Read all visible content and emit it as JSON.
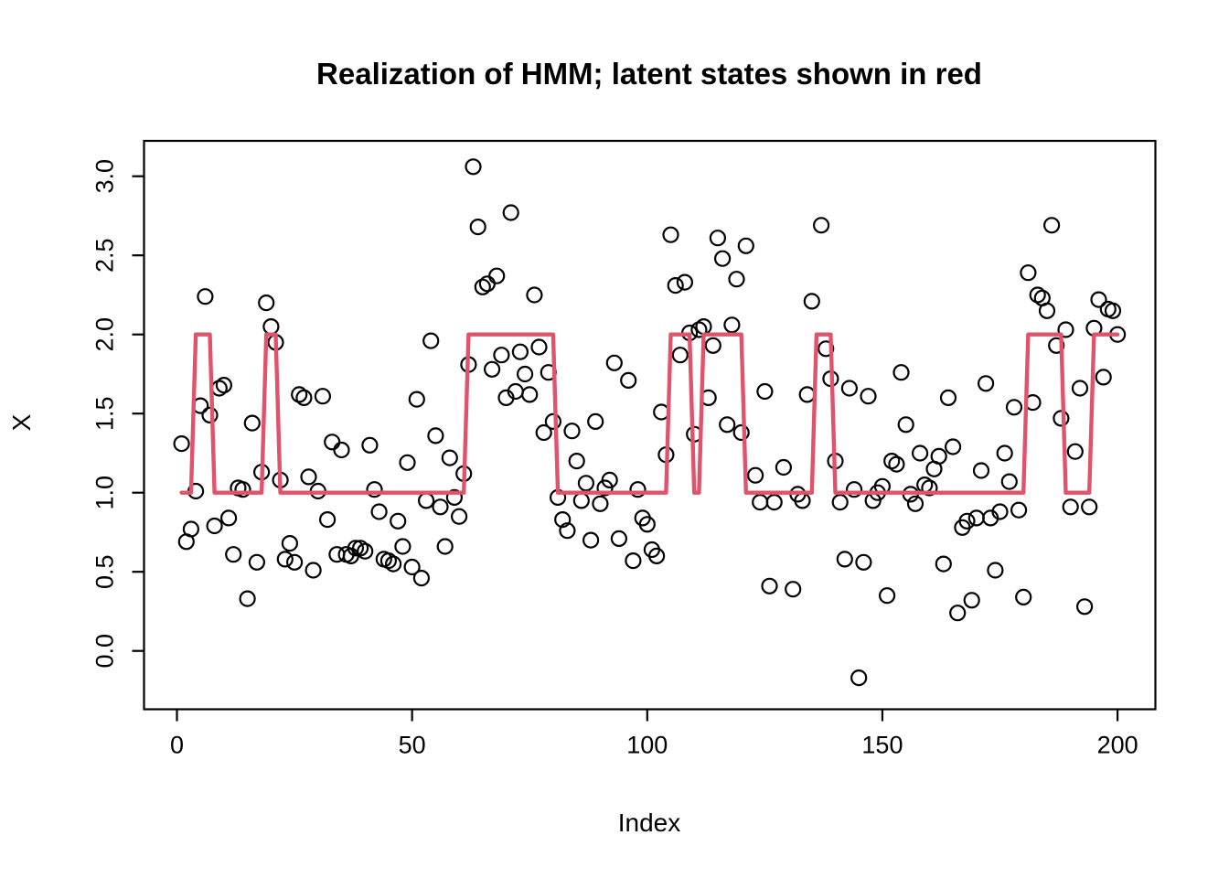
{
  "page": {
    "background": "#ffffff",
    "foreground": "#000000"
  },
  "chart_data": {
    "type": "scatter",
    "title": "Realization of HMM; latent states shown in red",
    "xlabel": "Index",
    "ylabel": "X",
    "x_tick_labels": [
      "0",
      "50",
      "100",
      "150",
      "200"
    ],
    "x_tick_values": [
      0,
      50,
      100,
      150,
      200
    ],
    "y_tick_labels": [
      "0.0",
      "0.5",
      "1.0",
      "1.5",
      "2.0",
      "2.5",
      "3.0"
    ],
    "y_tick_values": [
      0.0,
      0.5,
      1.0,
      1.5,
      2.0,
      2.5,
      3.0
    ],
    "xlim": [
      -7,
      208
    ],
    "ylim": [
      -0.37,
      3.22
    ],
    "grid": false,
    "legend_position": "none",
    "marker": "open-circle",
    "point_color": "#000000",
    "line_color": "#DF536B",
    "series": [
      {
        "name": "observations",
        "type": "scatter",
        "points": [
          [
            1,
            1.31
          ],
          [
            2,
            0.69
          ],
          [
            3,
            0.77
          ],
          [
            4,
            1.01
          ],
          [
            5,
            1.55
          ],
          [
            6,
            2.24
          ],
          [
            7,
            1.49
          ],
          [
            8,
            0.79
          ],
          [
            9,
            1.66
          ],
          [
            10,
            1.68
          ],
          [
            11,
            0.84
          ],
          [
            12,
            0.61
          ],
          [
            13,
            1.03
          ],
          [
            14,
            1.02
          ],
          [
            15,
            0.33
          ],
          [
            16,
            1.44
          ],
          [
            17,
            0.56
          ],
          [
            18,
            1.13
          ],
          [
            19,
            2.2
          ],
          [
            20,
            2.05
          ],
          [
            21,
            1.95
          ],
          [
            22,
            1.08
          ],
          [
            23,
            0.58
          ],
          [
            24,
            0.68
          ],
          [
            25,
            0.56
          ],
          [
            26,
            1.62
          ],
          [
            27,
            1.6
          ],
          [
            28,
            1.1
          ],
          [
            29,
            0.51
          ],
          [
            30,
            1.01
          ],
          [
            31,
            1.61
          ],
          [
            32,
            0.83
          ],
          [
            33,
            1.32
          ],
          [
            34,
            0.61
          ],
          [
            35,
            1.27
          ],
          [
            36,
            0.61
          ],
          [
            37,
            0.6
          ],
          [
            38,
            0.65
          ],
          [
            39,
            0.65
          ],
          [
            40,
            0.63
          ],
          [
            41,
            1.3
          ],
          [
            42,
            1.02
          ],
          [
            43,
            0.88
          ],
          [
            44,
            0.58
          ],
          [
            45,
            0.57
          ],
          [
            46,
            0.55
          ],
          [
            47,
            0.82
          ],
          [
            48,
            0.66
          ],
          [
            49,
            1.19
          ],
          [
            50,
            0.53
          ],
          [
            51,
            1.59
          ],
          [
            52,
            0.46
          ],
          [
            53,
            0.95
          ],
          [
            54,
            1.96
          ],
          [
            55,
            1.36
          ],
          [
            56,
            0.91
          ],
          [
            57,
            0.66
          ],
          [
            58,
            1.22
          ],
          [
            59,
            0.97
          ],
          [
            60,
            0.85
          ],
          [
            61,
            1.12
          ],
          [
            62,
            1.81
          ],
          [
            63,
            3.06
          ],
          [
            64,
            2.68
          ],
          [
            65,
            2.3
          ],
          [
            66,
            2.32
          ],
          [
            67,
            1.78
          ],
          [
            68,
            2.37
          ],
          [
            69,
            1.87
          ],
          [
            70,
            1.6
          ],
          [
            71,
            2.77
          ],
          [
            72,
            1.64
          ],
          [
            73,
            1.89
          ],
          [
            74,
            1.75
          ],
          [
            75,
            1.62
          ],
          [
            76,
            2.25
          ],
          [
            77,
            1.92
          ],
          [
            78,
            1.38
          ],
          [
            79,
            1.76
          ],
          [
            80,
            1.45
          ],
          [
            81,
            0.97
          ],
          [
            82,
            0.83
          ],
          [
            83,
            0.76
          ],
          [
            84,
            1.39
          ],
          [
            85,
            1.2
          ],
          [
            86,
            0.95
          ],
          [
            87,
            1.06
          ],
          [
            88,
            0.7
          ],
          [
            89,
            1.45
          ],
          [
            90,
            0.93
          ],
          [
            91,
            1.03
          ],
          [
            92,
            1.08
          ],
          [
            93,
            1.82
          ],
          [
            94,
            0.71
          ],
          [
            96,
            1.71
          ],
          [
            97,
            0.57
          ],
          [
            98,
            1.02
          ],
          [
            99,
            0.84
          ],
          [
            100,
            0.8
          ],
          [
            101,
            0.64
          ],
          [
            102,
            0.6
          ],
          [
            103,
            1.51
          ],
          [
            104,
            1.24
          ],
          [
            105,
            2.63
          ],
          [
            106,
            2.31
          ],
          [
            107,
            1.87
          ],
          [
            108,
            2.33
          ],
          [
            109,
            2.01
          ],
          [
            110,
            1.37
          ],
          [
            111,
            2.03
          ],
          [
            112,
            2.05
          ],
          [
            113,
            1.6
          ],
          [
            114,
            1.93
          ],
          [
            115,
            2.61
          ],
          [
            116,
            2.48
          ],
          [
            117,
            1.43
          ],
          [
            118,
            2.06
          ],
          [
            119,
            2.35
          ],
          [
            120,
            1.38
          ],
          [
            121,
            2.56
          ],
          [
            123,
            1.11
          ],
          [
            124,
            0.94
          ],
          [
            125,
            1.64
          ],
          [
            126,
            0.41
          ],
          [
            127,
            0.94
          ],
          [
            129,
            1.16
          ],
          [
            131,
            0.39
          ],
          [
            132,
            0.99
          ],
          [
            133,
            0.95
          ],
          [
            134,
            1.62
          ],
          [
            135,
            2.21
          ],
          [
            137,
            2.69
          ],
          [
            138,
            1.91
          ],
          [
            139,
            1.72
          ],
          [
            140,
            1.2
          ],
          [
            141,
            0.94
          ],
          [
            142,
            0.58
          ],
          [
            143,
            1.66
          ],
          [
            144,
            1.02
          ],
          [
            145,
            -0.17
          ],
          [
            146,
            0.56
          ],
          [
            147,
            1.61
          ],
          [
            148,
            0.95
          ],
          [
            149,
            1.0
          ],
          [
            150,
            1.04
          ],
          [
            151,
            0.35
          ],
          [
            152,
            1.2
          ],
          [
            153,
            1.18
          ],
          [
            154,
            1.76
          ],
          [
            155,
            1.43
          ],
          [
            156,
            0.99
          ],
          [
            157,
            0.93
          ],
          [
            158,
            1.25
          ],
          [
            159,
            1.05
          ],
          [
            160,
            1.03
          ],
          [
            161,
            1.15
          ],
          [
            162,
            1.23
          ],
          [
            163,
            0.55
          ],
          [
            164,
            1.6
          ],
          [
            165,
            1.29
          ],
          [
            166,
            0.24
          ],
          [
            167,
            0.78
          ],
          [
            168,
            0.82
          ],
          [
            169,
            0.32
          ],
          [
            170,
            0.84
          ],
          [
            171,
            1.14
          ],
          [
            172,
            1.69
          ],
          [
            173,
            0.84
          ],
          [
            174,
            0.51
          ],
          [
            175,
            0.88
          ],
          [
            176,
            1.25
          ],
          [
            177,
            1.07
          ],
          [
            178,
            1.54
          ],
          [
            179,
            0.89
          ],
          [
            180,
            0.34
          ],
          [
            181,
            2.39
          ],
          [
            182,
            1.57
          ],
          [
            183,
            2.25
          ],
          [
            184,
            2.23
          ],
          [
            185,
            2.15
          ],
          [
            186,
            2.69
          ],
          [
            187,
            1.93
          ],
          [
            188,
            1.47
          ],
          [
            189,
            2.03
          ],
          [
            190,
            0.91
          ],
          [
            191,
            1.26
          ],
          [
            192,
            1.66
          ],
          [
            193,
            0.28
          ],
          [
            194,
            0.91
          ],
          [
            195,
            2.04
          ],
          [
            196,
            2.22
          ],
          [
            197,
            1.73
          ],
          [
            198,
            2.16
          ],
          [
            199,
            2.15
          ],
          [
            200,
            2.0
          ]
        ]
      },
      {
        "name": "latent states (red step line)",
        "type": "step-line",
        "state_segments": [
          [
            1,
            3,
            1
          ],
          [
            4,
            7,
            2
          ],
          [
            8,
            18,
            1
          ],
          [
            19,
            21,
            2
          ],
          [
            22,
            61,
            1
          ],
          [
            62,
            80,
            2
          ],
          [
            81,
            104,
            1
          ],
          [
            105,
            109,
            2
          ],
          [
            110,
            111,
            1
          ],
          [
            112,
            120,
            2
          ],
          [
            121,
            135,
            1
          ],
          [
            136,
            139,
            2
          ],
          [
            140,
            180,
            1
          ],
          [
            181,
            188,
            2
          ],
          [
            189,
            194,
            1
          ],
          [
            195,
            200,
            2
          ]
        ]
      }
    ]
  }
}
